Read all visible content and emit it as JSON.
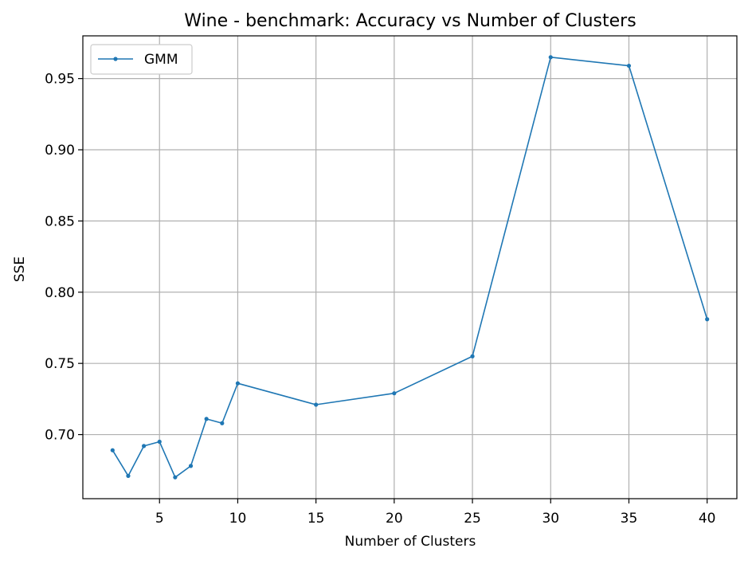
{
  "chart_data": {
    "type": "line",
    "title": "Wine - benchmark: Accuracy vs Number of Clusters",
    "xlabel": "Number of Clusters",
    "ylabel": "SSE",
    "xlim": [
      0.1,
      41.9
    ],
    "ylim": [
      0.655,
      0.98
    ],
    "xticks": [
      5,
      10,
      15,
      20,
      25,
      30,
      35,
      40
    ],
    "yticks": [
      0.7,
      0.75,
      0.8,
      0.85,
      0.9,
      0.95
    ],
    "ytick_labels": [
      "0.70",
      "0.75",
      "0.80",
      "0.85",
      "0.90",
      "0.95"
    ],
    "grid": true,
    "legend_position": "top-left",
    "series": [
      {
        "name": "GMM",
        "color": "#1f77b4",
        "x": [
          2,
          3,
          4,
          5,
          6,
          7,
          8,
          9,
          10,
          15,
          20,
          25,
          30,
          35,
          40
        ],
        "y": [
          0.689,
          0.671,
          0.692,
          0.695,
          0.67,
          0.678,
          0.711,
          0.708,
          0.736,
          0.721,
          0.729,
          0.755,
          0.965,
          0.959,
          0.781
        ]
      }
    ]
  }
}
